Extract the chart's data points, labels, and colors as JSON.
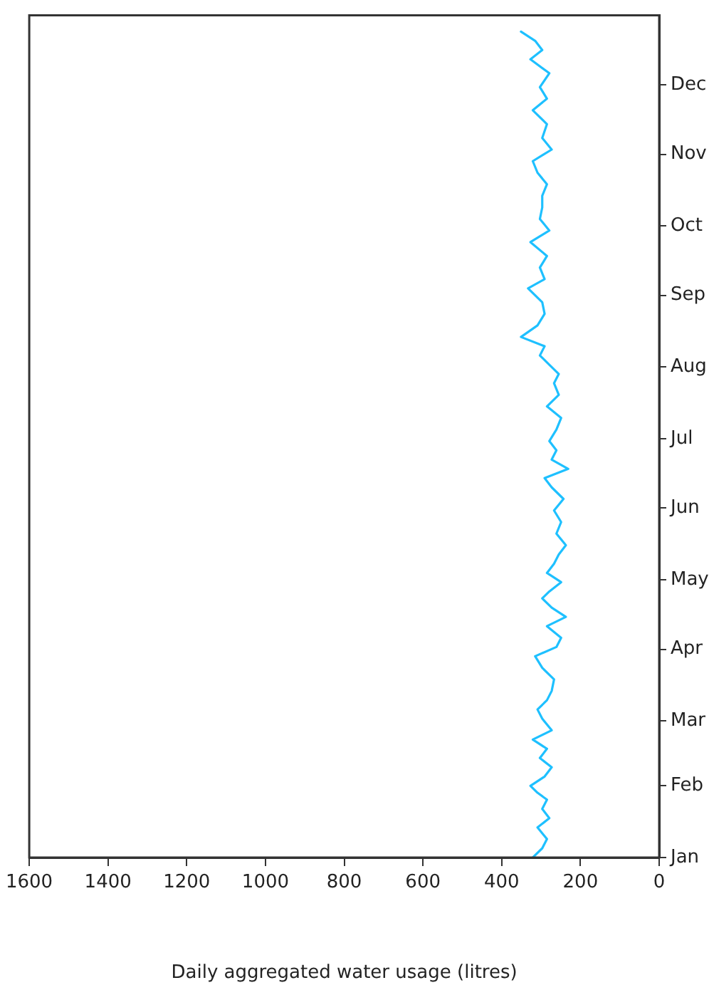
{
  "chart_data": {
    "type": "line",
    "orientation": "horizontal",
    "xlabel": "Daily aggregated water usage (litres)",
    "x": [
      "--01-01",
      "--01-05",
      "--01-09",
      "--01-14",
      "--01-18",
      "--01-22",
      "--01-26",
      "--01-29",
      "--02-01",
      "--02-05",
      "--02-09",
      "--02-13",
      "--02-17",
      "--02-21",
      "--02-25",
      "--03-02",
      "--03-06",
      "--03-10",
      "--03-14",
      "--03-19",
      "--03-24",
      "--03-29",
      "--04-02",
      "--04-06",
      "--04-11",
      "--04-15",
      "--04-19",
      "--04-23",
      "--04-26",
      "--04-30",
      "--05-04",
      "--05-08",
      "--05-12",
      "--05-16",
      "--05-21",
      "--05-26",
      "--05-31",
      "--06-05",
      "--06-10",
      "--06-14",
      "--06-18",
      "--06-22",
      "--06-26",
      "--06-30",
      "--07-05",
      "--07-10",
      "--07-15",
      "--07-20",
      "--07-25",
      "--07-29",
      "--08-02",
      "--08-06",
      "--08-10",
      "--08-14",
      "--08-19",
      "--08-24",
      "--08-29",
      "--09-04",
      "--09-08",
      "--09-13",
      "--09-18",
      "--09-24",
      "--09-29",
      "--10-04",
      "--10-09",
      "--10-14",
      "--10-19",
      "--10-24",
      "--10-29",
      "--11-03",
      "--11-08",
      "--11-14",
      "--11-20",
      "--11-25",
      "--11-30",
      "--12-06",
      "--12-12",
      "--12-16",
      "--12-20",
      "--12-24"
    ],
    "series": [
      {
        "color": "#1ec0ff",
        "values": [
          321,
          297,
          285,
          309,
          279,
          297,
          285,
          309,
          327,
          291,
          273,
          303,
          285,
          321,
          273,
          297,
          309,
          285,
          273,
          267,
          297,
          315,
          261,
          249,
          285,
          237,
          273,
          297,
          279,
          249,
          285,
          267,
          255,
          237,
          261,
          249,
          267,
          243,
          273,
          291,
          231,
          273,
          261,
          279,
          261,
          249,
          285,
          255,
          267,
          255,
          279,
          303,
          291,
          351,
          309,
          291,
          297,
          333,
          291,
          303,
          285,
          327,
          279,
          303,
          297,
          297,
          285,
          309,
          321,
          273,
          297,
          285,
          321,
          285,
          303,
          279,
          327,
          297,
          315,
          351
        ]
      }
    ],
    "xlim": [
      1600,
      0
    ],
    "xticks": [
      1600,
      1400,
      1200,
      1000,
      800,
      600,
      400,
      200,
      0
    ],
    "ylim": [
      "--01-01",
      "--12-31"
    ],
    "yticks": [
      {
        "value": "--01-01",
        "label": "Jan"
      },
      {
        "value": "--02-01",
        "label": "Feb"
      },
      {
        "value": "--03-01",
        "label": "Mar"
      },
      {
        "value": "--04-01",
        "label": "Apr"
      },
      {
        "value": "--05-01",
        "label": "May"
      },
      {
        "value": "--06-01",
        "label": "Jun"
      },
      {
        "value": "--07-01",
        "label": "Jul"
      },
      {
        "value": "--08-01",
        "label": "Aug"
      },
      {
        "value": "--09-01",
        "label": "Sep"
      },
      {
        "value": "--10-01",
        "label": "Oct"
      },
      {
        "value": "--11-01",
        "label": "Nov"
      },
      {
        "value": "--12-01",
        "label": "Dec"
      }
    ],
    "grid": false,
    "legend": false,
    "marker": "none",
    "line_style": "solid"
  }
}
